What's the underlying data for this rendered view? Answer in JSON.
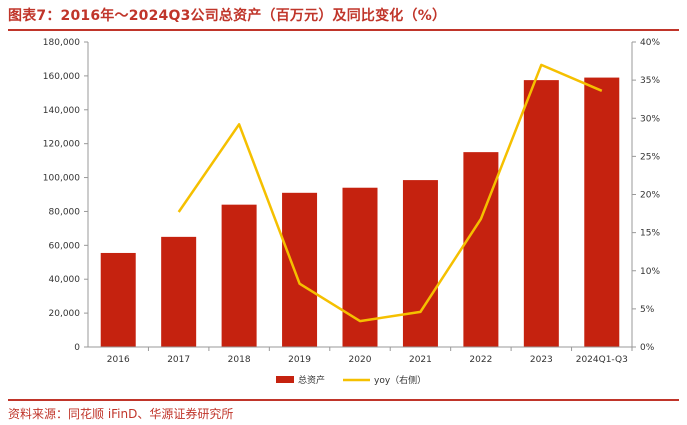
{
  "figure_title": "图表7：2016年～2024Q3公司总资产（百万元）及同比变化（%）",
  "source": "资料来源：同花顺 iFinD、华源证券研究所",
  "colors": {
    "bar": "#c5220f",
    "line": "#f5c000",
    "accent": "#c0352a"
  },
  "chart_data": {
    "type": "bar",
    "categories": [
      "2016",
      "2017",
      "2018",
      "2019",
      "2020",
      "2021",
      "2022",
      "2023",
      "2024Q1-Q3"
    ],
    "series": [
      {
        "name": "总资产",
        "type": "bar",
        "axis": "left",
        "values": [
          55500,
          65000,
          84000,
          91000,
          94000,
          98500,
          115000,
          157500,
          159000
        ]
      },
      {
        "name": "yoy（右侧）",
        "type": "line",
        "axis": "right",
        "values": [
          null,
          17.7,
          29.2,
          8.3,
          3.4,
          4.6,
          16.8,
          37.0,
          33.6
        ]
      }
    ],
    "left_axis": {
      "ylim": [
        0,
        180000
      ],
      "ticks": [
        "0",
        "20,000",
        "40,000",
        "60,000",
        "80,000",
        "100,000",
        "120,000",
        "140,000",
        "160,000",
        "180,000"
      ]
    },
    "right_axis": {
      "ylim": [
        0,
        40
      ],
      "ticks": [
        "0%",
        "5%",
        "10%",
        "15%",
        "20%",
        "25%",
        "30%",
        "35%",
        "40%"
      ]
    },
    "legend_position": "bottom",
    "grid": false
  }
}
